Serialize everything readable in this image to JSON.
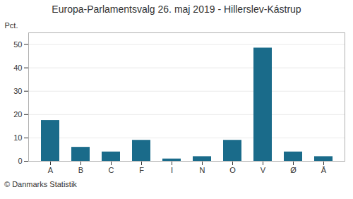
{
  "chart_data": {
    "type": "bar",
    "title": "Europa-Parlamentsvalg 26. maj 2019 - Hillerslev-Kástrup",
    "categories": [
      "A",
      "B",
      "C",
      "F",
      "I",
      "N",
      "O",
      "V",
      "Ø",
      "Å"
    ],
    "values": [
      17.5,
      6.0,
      4.0,
      9.0,
      1.0,
      2.0,
      9.0,
      48.5,
      4.0,
      2.0
    ],
    "color": "#1a6b8a",
    "ylabel": "Pct.",
    "ylim": [
      0,
      55
    ],
    "yticks": [
      0,
      10,
      20,
      30,
      40,
      50
    ],
    "grid": true,
    "footer": "© Danmarks Statistik"
  }
}
